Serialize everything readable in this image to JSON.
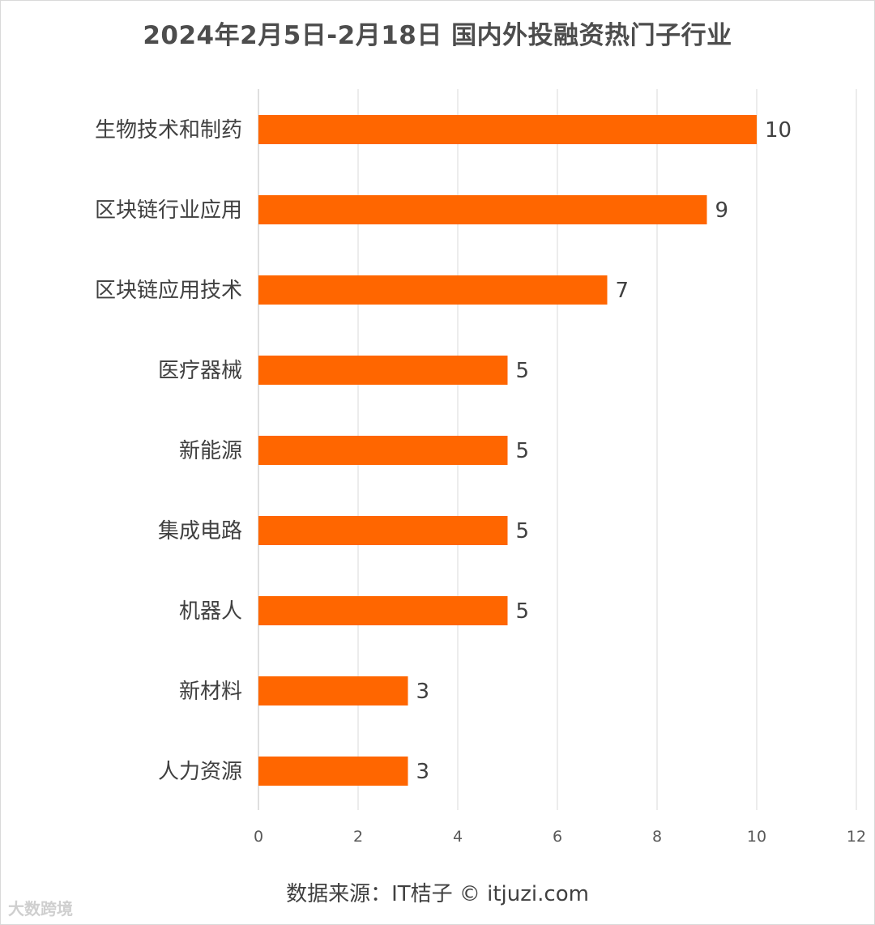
{
  "chart_data": {
    "type": "bar",
    "orientation": "horizontal",
    "title": "2024年2月5日-2月18日 国内外投融资热门子行业",
    "categories": [
      "生物技术和制药",
      "区块链行业应用",
      "区块链应用技术",
      "医疗器械",
      "新能源",
      "集成电路",
      "机器人",
      "新材料",
      "人力资源"
    ],
    "values": [
      10,
      9,
      7,
      5,
      5,
      5,
      5,
      3,
      3
    ],
    "xlim": [
      0,
      12
    ],
    "xticks": [
      0,
      2,
      4,
      6,
      8,
      10,
      12
    ],
    "grid": true,
    "data_labels": true,
    "bar_color": "#ff6600"
  },
  "footer": {
    "source": "数据来源：IT桔子 © itjuzi.com",
    "watermark": "大数跨境"
  }
}
